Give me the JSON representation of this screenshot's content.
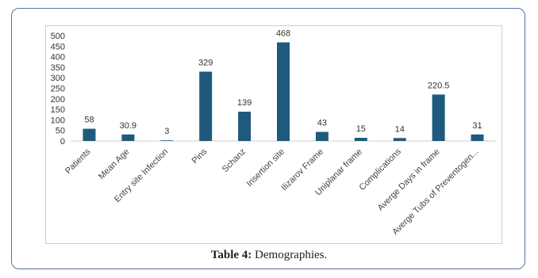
{
  "caption": {
    "label": "Table 4:",
    "text": " Demographies."
  },
  "colors": {
    "bar": "#1f5a7c",
    "frame": "#5b6fa8"
  },
  "chart_data": {
    "type": "bar",
    "title": "",
    "xlabel": "",
    "ylabel": "",
    "ylim": [
      0,
      500
    ],
    "yticks": [
      0,
      50,
      100,
      150,
      200,
      250,
      300,
      350,
      400,
      450,
      500
    ],
    "grid": false,
    "categories": [
      "Patients",
      "Mean Age",
      "Entry site Infection",
      "Pins",
      "Schanz",
      "Insertion site",
      "Ilizarov Frame",
      "Uniplanar frame",
      "Complications",
      "Averge Days in frame",
      "Averge Tubs of Preventogen..."
    ],
    "values": [
      58,
      30.9,
      3,
      329,
      139,
      468,
      43,
      15,
      14,
      220.5,
      31
    ],
    "data_labels": [
      "58",
      "30.9",
      "3",
      "329",
      "139",
      "468",
      "43",
      "15",
      "14",
      "220.5",
      "31"
    ]
  }
}
